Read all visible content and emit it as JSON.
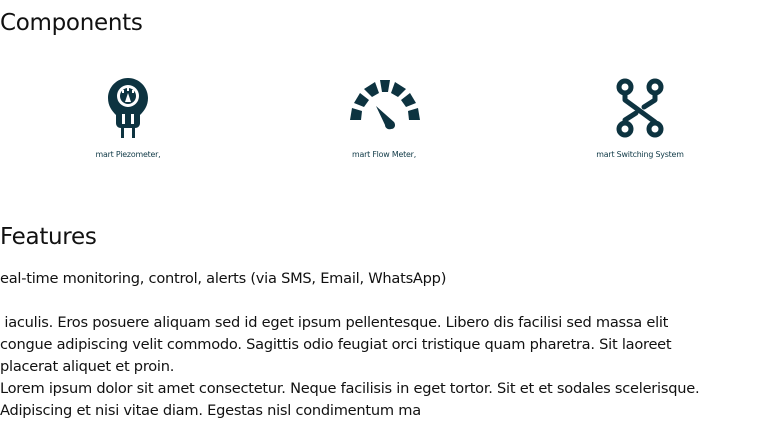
{
  "components": {
    "heading": "Components",
    "items": [
      {
        "label": "mart Piezometer,",
        "icon": "piezometer-icon"
      },
      {
        "label": "mart Flow Meter,",
        "icon": "gauge-icon"
      },
      {
        "label": "mart Switching System",
        "icon": "switching-circuit-icon"
      }
    ]
  },
  "features": {
    "heading": "Features",
    "summary": "eal-time monitoring, control, alerts (via SMS, Email, WhatsApp)",
    "body_lines": [
      " iaculis. Eros posuere aliquam sed id eget ipsum pellentesque. Libero dis facilisi sed massa elit",
      "congue adipiscing velit commodo. Sagittis odio feugiat orci tristique quam pharetra. Sit laoreet",
      "placerat aliquet et proin.",
      "Lorem ipsum dolor sit amet consectetur. Neque facilisis in eget tortor. Sit et et sodales scelerisque.",
      "Adipiscing et nisi vitae diam. Egestas nisl condimentum ma"
    ]
  },
  "colors": {
    "icon": "#0d3340",
    "label": "#0f3946",
    "text": "#111111"
  }
}
